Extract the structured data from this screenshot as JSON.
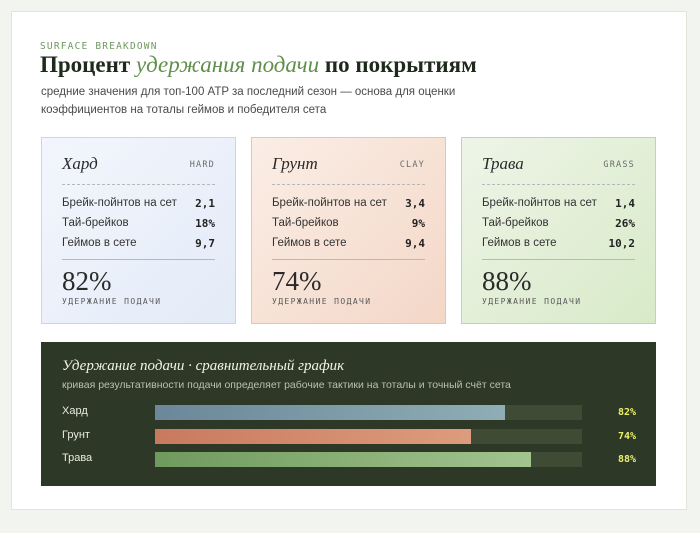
{
  "header": {
    "kicker": "SURFACE BREAKDOWN",
    "title_part1": "Процент ",
    "title_accent": "удержания подачи",
    "title_part2": " по покрытиям",
    "subtitle": "средние значения для топ-100 ATP за последний сезон — основа для оценки коэффициентов на тоталы геймов и победителя сета"
  },
  "panels": [
    {
      "name": "Хард",
      "code": "HARD",
      "rows": [
        {
          "label": "Брейк-пойнтов на сет",
          "value": "2,1"
        },
        {
          "label": "Тай-брейков",
          "value": "18%"
        },
        {
          "label": "Геймов в сете",
          "value": "9,7"
        }
      ],
      "big": "82%",
      "big_label": "УДЕРЖАНИЕ ПОДАЧИ"
    },
    {
      "name": "Грунт",
      "code": "CLAY",
      "rows": [
        {
          "label": "Брейк-пойнтов на сет",
          "value": "3,4"
        },
        {
          "label": "Тай-брейков",
          "value": "9%"
        },
        {
          "label": "Геймов в сете",
          "value": "9,4"
        }
      ],
      "big": "74%",
      "big_label": "УДЕРЖАНИЕ ПОДАЧИ"
    },
    {
      "name": "Трава",
      "code": "GRASS",
      "rows": [
        {
          "label": "Брейк-пойнтов на сет",
          "value": "1,4"
        },
        {
          "label": "Тай-брейков",
          "value": "26%"
        },
        {
          "label": "Геймов в сете",
          "value": "10,2"
        }
      ],
      "big": "88%",
      "big_label": "УДЕРЖАНИЕ ПОДАЧИ"
    }
  ],
  "comparison": {
    "title": "Удержание подачи · сравнительный график",
    "subtitle": "кривая результативности подачи определяет рабочие тактики на тоталы и точный счёт сета",
    "bars": [
      {
        "label": "Хард",
        "value_text": "82%",
        "fraction": 0.82,
        "color_from": "#6b8799",
        "color_to": "#8fadb5"
      },
      {
        "label": "Грунт",
        "value_text": "74%",
        "fraction": 0.74,
        "color_from": "#c97a5e",
        "color_to": "#dd9c7d"
      },
      {
        "label": "Трава",
        "value_text": "88%",
        "fraction": 0.88,
        "color_from": "#6f9a5e",
        "color_to": "#a2c48f"
      }
    ]
  },
  "colors": {
    "accent_green": "#5f8f4a",
    "dark_panel": "#2e3826",
    "value_yellow": "#e8f06a"
  }
}
